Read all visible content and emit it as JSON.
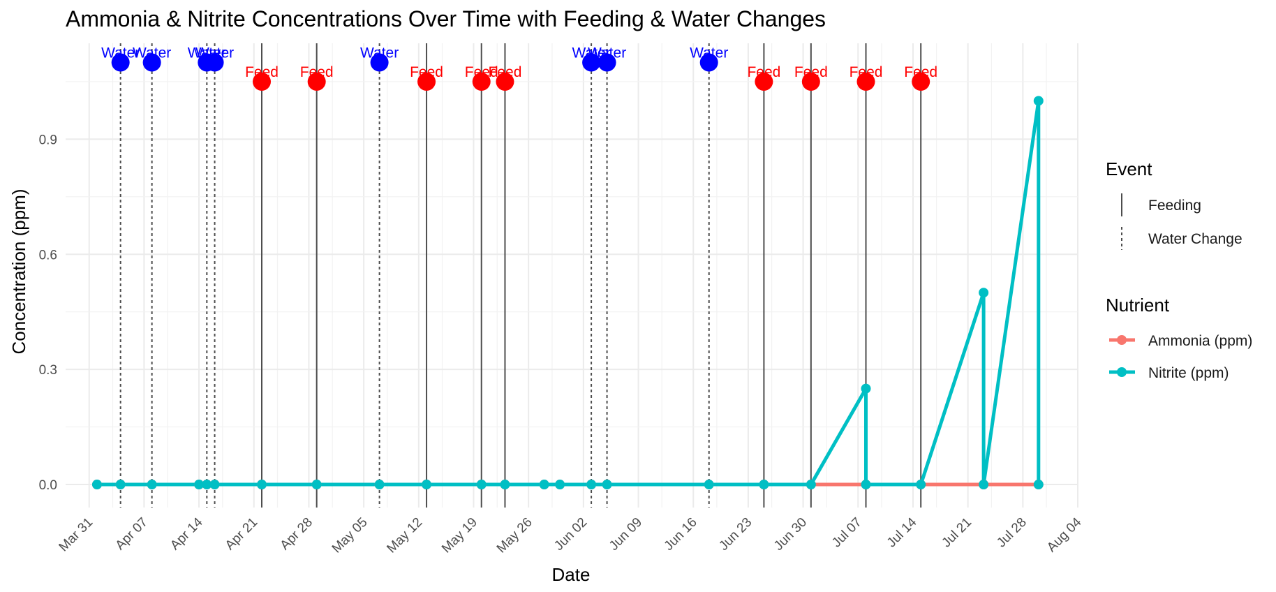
{
  "chart_data": {
    "type": "line",
    "title": "Ammonia & Nitrite Concentrations Over Time with Feeding & Water Changes",
    "xlabel": "Date",
    "ylabel": "Concentration (ppm)",
    "x_range": [
      "2025-03-28",
      "2025-08-04"
    ],
    "ylim": [
      -0.06,
      1.15
    ],
    "x_ticks": [
      {
        "date": "2025-03-31",
        "label": "Mar 31"
      },
      {
        "date": "2025-04-07",
        "label": "Apr 07"
      },
      {
        "date": "2025-04-14",
        "label": "Apr 14"
      },
      {
        "date": "2025-04-21",
        "label": "Apr 21"
      },
      {
        "date": "2025-04-28",
        "label": "Apr 28"
      },
      {
        "date": "2025-05-05",
        "label": "May 05"
      },
      {
        "date": "2025-05-12",
        "label": "May 12"
      },
      {
        "date": "2025-05-19",
        "label": "May 19"
      },
      {
        "date": "2025-05-26",
        "label": "May 26"
      },
      {
        "date": "2025-06-02",
        "label": "Jun 02"
      },
      {
        "date": "2025-06-09",
        "label": "Jun 09"
      },
      {
        "date": "2025-06-16",
        "label": "Jun 16"
      },
      {
        "date": "2025-06-23",
        "label": "Jun 23"
      },
      {
        "date": "2025-06-30",
        "label": "Jun 30"
      },
      {
        "date": "2025-07-07",
        "label": "Jul 07"
      },
      {
        "date": "2025-07-14",
        "label": "Jul 14"
      },
      {
        "date": "2025-07-21",
        "label": "Jul 21"
      },
      {
        "date": "2025-07-28",
        "label": "Jul 28"
      },
      {
        "date": "2025-08-04",
        "label": "Aug 04"
      }
    ],
    "y_ticks": [
      {
        "value": 0.0,
        "label": "0.0"
      },
      {
        "value": 0.3,
        "label": "0.3"
      },
      {
        "value": 0.6,
        "label": "0.6"
      },
      {
        "value": 0.9,
        "label": "0.9"
      }
    ],
    "grid": true,
    "legend_position": "right",
    "series": [
      {
        "name": "Ammonia (ppm)",
        "color": "#F8766D",
        "points": [
          {
            "x": "2025-04-01",
            "y": 0.0
          },
          {
            "x": "2025-04-04",
            "y": 0.0
          },
          {
            "x": "2025-04-08",
            "y": 0.0
          },
          {
            "x": "2025-04-14",
            "y": 0.0
          },
          {
            "x": "2025-04-15",
            "y": 0.0
          },
          {
            "x": "2025-04-16",
            "y": 0.0
          },
          {
            "x": "2025-04-22",
            "y": 0.0
          },
          {
            "x": "2025-04-29",
            "y": 0.0
          },
          {
            "x": "2025-05-07",
            "y": 0.0
          },
          {
            "x": "2025-05-13",
            "y": 0.0
          },
          {
            "x": "2025-05-20",
            "y": 0.0
          },
          {
            "x": "2025-05-23",
            "y": 0.0
          },
          {
            "x": "2025-05-28",
            "y": 0.0
          },
          {
            "x": "2025-05-30",
            "y": 0.0
          },
          {
            "x": "2025-06-03",
            "y": 0.0
          },
          {
            "x": "2025-06-05",
            "y": 0.0
          },
          {
            "x": "2025-06-18",
            "y": 0.0
          },
          {
            "x": "2025-06-25",
            "y": 0.0
          },
          {
            "x": "2025-07-01",
            "y": 0.0
          },
          {
            "x": "2025-07-08",
            "y": 0.0
          },
          {
            "x": "2025-07-15",
            "y": 0.0
          },
          {
            "x": "2025-07-23",
            "y": 0.0
          },
          {
            "x": "2025-07-23",
            "y": 0.0
          },
          {
            "x": "2025-07-30",
            "y": 0.0
          }
        ]
      },
      {
        "name": "Nitrite (ppm)",
        "color": "#00BFC4",
        "points": [
          {
            "x": "2025-04-01",
            "y": 0.0
          },
          {
            "x": "2025-04-04",
            "y": 0.0
          },
          {
            "x": "2025-04-08",
            "y": 0.0
          },
          {
            "x": "2025-04-14",
            "y": 0.0
          },
          {
            "x": "2025-04-15",
            "y": 0.0
          },
          {
            "x": "2025-04-16",
            "y": 0.0
          },
          {
            "x": "2025-04-22",
            "y": 0.0
          },
          {
            "x": "2025-04-29",
            "y": 0.0
          },
          {
            "x": "2025-05-07",
            "y": 0.0
          },
          {
            "x": "2025-05-13",
            "y": 0.0
          },
          {
            "x": "2025-05-20",
            "y": 0.0
          },
          {
            "x": "2025-05-23",
            "y": 0.0
          },
          {
            "x": "2025-05-28",
            "y": 0.0
          },
          {
            "x": "2025-05-30",
            "y": 0.0
          },
          {
            "x": "2025-06-03",
            "y": 0.0
          },
          {
            "x": "2025-06-05",
            "y": 0.0
          },
          {
            "x": "2025-06-18",
            "y": 0.0
          },
          {
            "x": "2025-06-25",
            "y": 0.0
          },
          {
            "x": "2025-07-01",
            "y": 0.0
          },
          {
            "x": "2025-07-08",
            "y": 0.25
          },
          {
            "x": "2025-07-08",
            "y": 0.0
          },
          {
            "x": "2025-07-15",
            "y": 0.0
          },
          {
            "x": "2025-07-23",
            "y": 0.5
          },
          {
            "x": "2025-07-23",
            "y": 0.0
          },
          {
            "x": "2025-07-30",
            "y": 1.0
          },
          {
            "x": "2025-07-30",
            "y": 0.0
          }
        ]
      }
    ],
    "events": {
      "legend_title": "Event",
      "line_color": "#4d4d4d",
      "types": [
        {
          "key": "feeding",
          "name": "Feeding",
          "dash": "solid",
          "label": "Feed",
          "label_color": "#FF0000",
          "marker_y": 1.05
        },
        {
          "key": "water",
          "name": "Water Change",
          "dash": "dotted",
          "label": "Water",
          "label_color": "#0000FF",
          "marker_y": 1.1
        }
      ],
      "feeding_dates": [
        "2025-04-22",
        "2025-04-29",
        "2025-05-13",
        "2025-05-20",
        "2025-05-23",
        "2025-06-25",
        "2025-07-01",
        "2025-07-08",
        "2025-07-15"
      ],
      "water_dates": [
        "2025-04-04",
        "2025-04-08",
        "2025-04-15",
        "2025-04-16",
        "2025-05-07",
        "2025-06-03",
        "2025-06-05",
        "2025-06-18"
      ]
    },
    "nutrient_legend_title": "Nutrient"
  }
}
